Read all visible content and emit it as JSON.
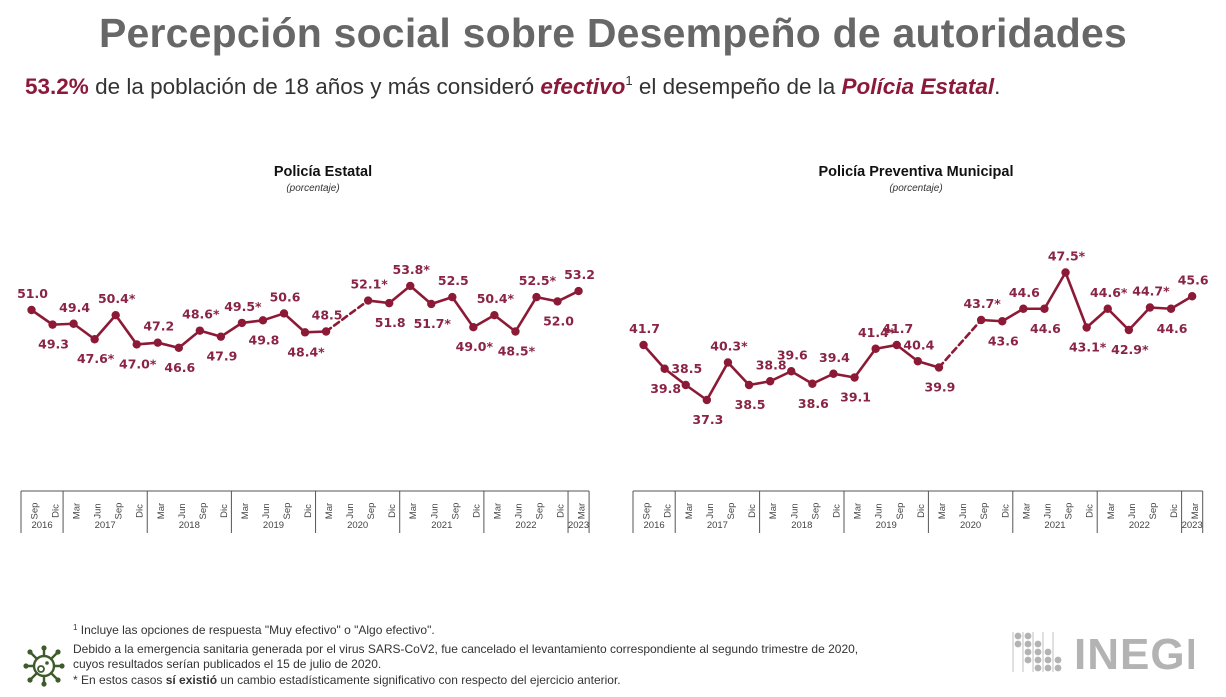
{
  "header": {
    "title": "Percepción social sobre Desempeño de autoridades",
    "headline": {
      "value": "53.2%",
      "text1": " de la población de 18 años y más consideró ",
      "emph": "efectivo",
      "sup": "1",
      "text2": " el desempeño de la ",
      "entity": "Polícia Estatal",
      "end": "."
    }
  },
  "colors": {
    "line": "#8c1a36",
    "label": "#8a2444",
    "title": "#676767",
    "axis": "#555555",
    "virus_icon": "#3e5b2b",
    "logo": "#b3b3b3"
  },
  "chart_data": [
    {
      "type": "line",
      "title": "Policía Estatal",
      "subtitle": "(porcentaje)",
      "xlabel": "",
      "ylabel": "",
      "grid": false,
      "legend": "none",
      "x": [
        "Sep 2016",
        "Dic 2016",
        "Mar 2017",
        "Jun 2017",
        "Sep 2017",
        "Dic 2017",
        "Mar 2018",
        "Jun 2018",
        "Sep 2018",
        "Dic 2018",
        "Mar 2019",
        "Jun 2019",
        "Sep 2019",
        "Dic 2019",
        "Mar 2020",
        "Jun 2020",
        "Sep 2020",
        "Dic 2020",
        "Mar 2021",
        "Jun 2021",
        "Sep 2021",
        "Dic 2021",
        "Mar 2022",
        "Jun 2022",
        "Sep 2022",
        "Dic 2022",
        "Mar 2023"
      ],
      "months": [
        "Sep",
        "Dic",
        "Mar",
        "Jun",
        "Sep",
        "Dic",
        "Mar",
        "Jun",
        "Sep",
        "Dic",
        "Mar",
        "Jun",
        "Sep",
        "Dic",
        "Mar",
        "Jun",
        "Sep",
        "Dic",
        "Mar",
        "Jun",
        "Sep",
        "Dic",
        "Mar",
        "Jun",
        "Sep",
        "Dic",
        "Mar"
      ],
      "years": [
        {
          "label": "2016",
          "span": 2
        },
        {
          "label": "2017",
          "span": 4
        },
        {
          "label": "2018",
          "span": 4
        },
        {
          "label": "2019",
          "span": 4
        },
        {
          "label": "2020",
          "span": 4
        },
        {
          "label": "2021",
          "span": 4
        },
        {
          "label": "2022",
          "span": 4
        },
        {
          "label": "2023",
          "span": 1
        }
      ],
      "values": [
        51.0,
        49.3,
        49.4,
        47.6,
        50.4,
        47.0,
        47.2,
        46.6,
        48.6,
        47.9,
        49.5,
        49.8,
        50.6,
        48.4,
        48.5,
        null,
        52.1,
        51.8,
        53.8,
        51.7,
        52.5,
        49.0,
        50.4,
        48.5,
        52.5,
        52.0,
        53.2
      ],
      "labels": [
        "51.0",
        "49.3",
        "49.4",
        "47.6*",
        "50.4*",
        "47.0*",
        "47.2",
        "46.6",
        "48.6*",
        "47.9",
        "49.5*",
        "49.8",
        "50.6",
        "48.4*",
        "48.5",
        "",
        "52.1*",
        "51.8",
        "53.8*",
        "51.7*",
        "52.5",
        "49.0*",
        "50.4*",
        "48.5*",
        "52.5*",
        "52.0",
        "53.2"
      ],
      "label_pos": [
        "above",
        "below",
        "above",
        "below",
        "above",
        "below",
        "above",
        "below",
        "above",
        "below",
        "above",
        "below",
        "above",
        "below",
        "above",
        "",
        "above",
        "below",
        "above",
        "below",
        "above",
        "below",
        "above",
        "below",
        "above",
        "below",
        "above"
      ],
      "gap_note": "Jun 2020 not surveyed (dashed connector)",
      "ylim": [
        42,
        57
      ]
    },
    {
      "type": "line",
      "title": "Policía Preventiva Municipal",
      "subtitle": "(porcentaje)",
      "xlabel": "",
      "ylabel": "",
      "grid": false,
      "legend": "none",
      "x": [
        "Sep 2016",
        "Dic 2016",
        "Mar 2017",
        "Jun 2017",
        "Sep 2017",
        "Dic 2017",
        "Mar 2018",
        "Jun 2018",
        "Sep 2018",
        "Dic 2018",
        "Mar 2019",
        "Jun 2019",
        "Sep 2019",
        "Dic 2019",
        "Mar 2020",
        "Jun 2020",
        "Sep 2020",
        "Dic 2020",
        "Mar 2021",
        "Jun 2021",
        "Sep 2021",
        "Dic 2021",
        "Mar 2022",
        "Jun 2022",
        "Sep 2022",
        "Dic 2022",
        "Mar 2023"
      ],
      "months": [
        "Sep",
        "Dic",
        "Mar",
        "Jun",
        "Sep",
        "Dic",
        "Mar",
        "Jun",
        "Sep",
        "Dic",
        "Mar",
        "Jun",
        "Sep",
        "Dic",
        "Mar",
        "Jun",
        "Sep",
        "Dic",
        "Mar",
        "Jun",
        "Sep",
        "Dic",
        "Mar",
        "Jun",
        "Sep",
        "Dic",
        "Mar"
      ],
      "years": [
        {
          "label": "2016",
          "span": 2
        },
        {
          "label": "2017",
          "span": 4
        },
        {
          "label": "2018",
          "span": 4
        },
        {
          "label": "2019",
          "span": 4
        },
        {
          "label": "2020",
          "span": 4
        },
        {
          "label": "2021",
          "span": 4
        },
        {
          "label": "2022",
          "span": 4
        },
        {
          "label": "2023",
          "span": 1
        }
      ],
      "values": [
        41.7,
        39.8,
        38.5,
        37.3,
        40.3,
        38.5,
        38.8,
        39.6,
        38.6,
        39.4,
        39.1,
        41.4,
        41.7,
        40.4,
        39.9,
        null,
        43.7,
        43.6,
        44.6,
        44.6,
        47.5,
        43.1,
        44.6,
        42.9,
        44.7,
        44.6,
        45.6
      ],
      "labels": [
        "41.7",
        "39.8",
        "38.5",
        "37.3",
        "40.3*",
        "38.5",
        "38.8",
        "39.6",
        "38.6",
        "39.4",
        "39.1",
        "41.4*",
        "41.7",
        "40.4",
        "39.9",
        "",
        "43.7*",
        "43.6",
        "44.6",
        "44.6",
        "47.5*",
        "43.1*",
        "44.6*",
        "42.9*",
        "44.7*",
        "44.6",
        "45.6"
      ],
      "label_pos": [
        "above",
        "below",
        "above",
        "below",
        "above",
        "below",
        "above",
        "above",
        "below",
        "above",
        "below",
        "above",
        "above",
        "above",
        "below",
        "",
        "above",
        "below",
        "above",
        "below",
        "above",
        "below",
        "above",
        "below",
        "above",
        "below",
        "above"
      ],
      "gap_note": "Jun 2020 not surveyed (dashed connector)",
      "ylim": [
        34,
        52
      ]
    }
  ],
  "footer": {
    "note1_sup": "1",
    "note1": " Incluye las opciones de respuesta \"Muy efectivo\" o \"Algo efectivo\".",
    "covid_line1": "Debido a la emergencia sanitaria generada por el virus SARS-CoV2, fue cancelado el levantamiento correspondiente al segundo trimestre de 2020,",
    "covid_line2": "cuyos resultados serían publicados el 15 de julio de 2020.",
    "sig_pre": "* En estos casos ",
    "sig_bold": "sí existió",
    "sig_post": " un cambio estadísticamente significativo con respecto del ejercicio anterior.",
    "logo_text": "INEGI",
    "virus_icon": "virus-icon"
  }
}
